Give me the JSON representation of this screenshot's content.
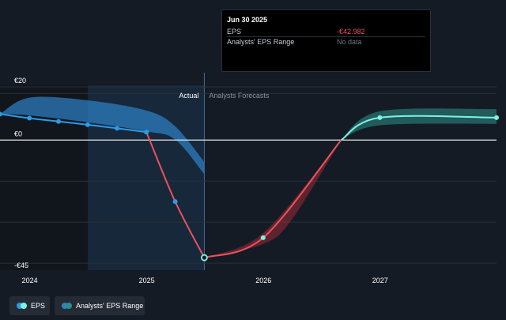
{
  "chart_data": {
    "type": "line",
    "ylim": [
      -47,
      20
    ],
    "xlim": [
      "2023-09-30",
      "2027-12-31"
    ],
    "y_tick_labels": [
      {
        "value": 20,
        "label": "€20"
      },
      {
        "value": 0,
        "label": "€0"
      },
      {
        "value": -45,
        "label": "-€45"
      }
    ],
    "x_tick_labels": [
      {
        "value": "2024-01-01",
        "label": "2024"
      },
      {
        "value": "2025-01-01",
        "label": "2025"
      },
      {
        "value": "2026-01-01",
        "label": "2026"
      },
      {
        "value": "2027-01-01",
        "label": "2027"
      }
    ],
    "region_labels": {
      "actual": "Actual",
      "forecast": "Analysts Forecasts"
    },
    "highlight_start": "2024-07-01",
    "actual_end": "2025-06-30",
    "series": [
      {
        "name": "EPS",
        "color": "#2d9ae6",
        "points": [
          {
            "x": "2023-09-30",
            "y": 9.5
          },
          {
            "x": "2023-12-31",
            "y": 8.0
          },
          {
            "x": "2024-03-31",
            "y": 6.8
          },
          {
            "x": "2024-06-30",
            "y": 5.6
          },
          {
            "x": "2024-09-30",
            "y": 4.3
          },
          {
            "x": "2024-12-31",
            "y": 2.9
          },
          {
            "x": "2025-03-31",
            "y": -22.5
          },
          {
            "x": "2025-06-30",
            "y": -42.982
          }
        ]
      },
      {
        "name": "EPS Forecast",
        "color": "#7df3e8",
        "points": [
          {
            "x": "2025-06-30",
            "y": -42.982
          },
          {
            "x": "2025-12-31",
            "y": -35.7
          },
          {
            "x": "2026-09-01",
            "y": 0
          },
          {
            "x": "2026-12-31",
            "y": 8.2
          },
          {
            "x": "2027-12-31",
            "y": 8.2
          }
        ]
      }
    ],
    "range_bands": [
      {
        "kind": "history",
        "color": "#2d82c8",
        "upper": [
          {
            "x": "2023-09-30",
            "y": 9.5
          },
          {
            "x": "2023-12-31",
            "y": 15.5
          },
          {
            "x": "2024-06-30",
            "y": 14.5
          },
          {
            "x": "2024-12-31",
            "y": 10.8
          },
          {
            "x": "2025-03-31",
            "y": 5.0
          },
          {
            "x": "2025-06-30",
            "y": -8.0
          }
        ],
        "lower": [
          {
            "x": "2025-06-30",
            "y": -12.5
          },
          {
            "x": "2025-03-31",
            "y": 0.2
          },
          {
            "x": "2024-12-31",
            "y": 3.2
          },
          {
            "x": "2024-06-30",
            "y": 6.5
          },
          {
            "x": "2023-12-31",
            "y": 9.0
          },
          {
            "x": "2023-09-30",
            "y": 9.5
          }
        ]
      },
      {
        "kind": "forecast-negative",
        "color": "#b52f3c",
        "upper": [
          {
            "x": "2025-06-30",
            "y": -42.982
          },
          {
            "x": "2025-12-31",
            "y": -34.0
          },
          {
            "x": "2026-09-01",
            "y": 0
          }
        ],
        "lower": [
          {
            "x": "2026-09-01",
            "y": 0
          },
          {
            "x": "2026-03-31",
            "y": -29.0
          },
          {
            "x": "2025-12-31",
            "y": -38.0
          },
          {
            "x": "2025-06-30",
            "y": -42.982
          }
        ]
      },
      {
        "kind": "forecast-positive",
        "color": "#2e8f86",
        "upper": [
          {
            "x": "2026-09-01",
            "y": 0
          },
          {
            "x": "2026-12-31",
            "y": 10.5
          },
          {
            "x": "2027-12-31",
            "y": 11.3
          }
        ],
        "lower": [
          {
            "x": "2027-12-31",
            "y": 5.9
          },
          {
            "x": "2026-12-31",
            "y": 5.4
          },
          {
            "x": "2026-09-01",
            "y": 0
          }
        ]
      }
    ]
  },
  "tooltip": {
    "date": "Jun 30 2025",
    "rows": [
      {
        "label": "EPS",
        "value": "-€42.982"
      },
      {
        "label": "Analysts' EPS Range",
        "value": "No data"
      }
    ]
  },
  "legend": [
    {
      "label": "EPS",
      "colors": [
        "#2d9ae6",
        "#7df3e8"
      ]
    },
    {
      "label": "Analysts' EPS Range",
      "colors": [
        "#2d82c8",
        "#2e8f86"
      ]
    }
  ]
}
